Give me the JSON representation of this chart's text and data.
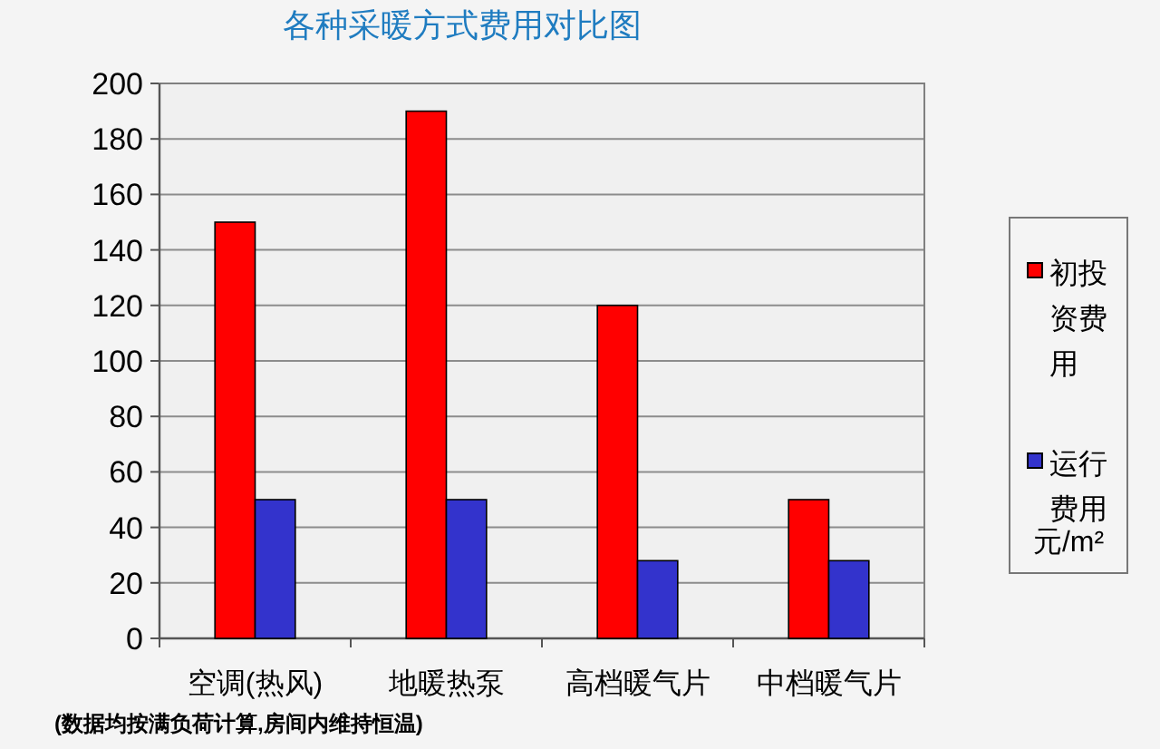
{
  "chart_data": {
    "type": "bar",
    "title": "各种采暖方式费用对比图",
    "categories": [
      "空调(热风)",
      "地暖热泵",
      "高档暖气片",
      "中档暖气片"
    ],
    "series": [
      {
        "name": "初投资费用",
        "color": "#ff0000",
        "values": [
          150,
          190,
          120,
          50
        ]
      },
      {
        "name": "运行费用",
        "color": "#3333cc",
        "values": [
          50,
          50,
          28,
          28
        ]
      }
    ],
    "ylim": [
      0,
      200
    ],
    "yticks": [
      0,
      20,
      40,
      60,
      80,
      100,
      120,
      140,
      160,
      180,
      200
    ],
    "grid": "y",
    "legend": "right",
    "annotations": [
      "元/m²",
      "(数据均按满负荷计算,房间内维持恒温)"
    ]
  }
}
